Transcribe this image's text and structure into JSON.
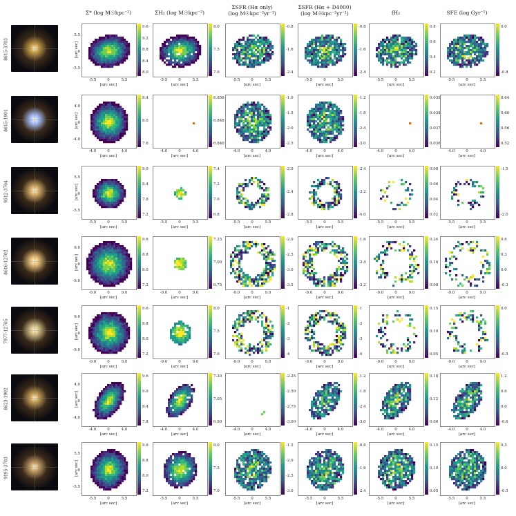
{
  "column_titles": [
    {
      "line1": "",
      "line2": "Σ* (log M☉kpc⁻²)"
    },
    {
      "line1": "",
      "line2": "ΣH₂ (log M☉kpc⁻²)"
    },
    {
      "line1": "ΣSFR (Hα only)",
      "line2": "(log M☉kpc⁻²yr⁻¹)"
    },
    {
      "line1": "ΣSFR (Hα + D4000)",
      "line2": "(log M☉kpc⁻²yr⁻¹)"
    },
    {
      "line1": "",
      "line2": "fH₂"
    },
    {
      "line1": "",
      "line2": "SFE (log Gyr⁻¹)"
    }
  ],
  "axis_label": "[arc sec]",
  "colors": {
    "viridis_low": "#440154",
    "viridis_mid": "#21918c",
    "viridis_high": "#fde725"
  },
  "rows": [
    {
      "id": "8615-3703",
      "xticks": [
        "-5.5",
        "0",
        "5.5"
      ],
      "yticks": [
        "5.5",
        "0",
        "-5.5"
      ],
      "cbars": [
        [
          "9.6",
          "9.2",
          "8.8",
          "8.4",
          "8.0"
        ],
        [
          "8.0",
          "7.5",
          "7.0"
        ],
        [
          "-0.8",
          "-1.6",
          "-2.4"
        ],
        [
          "-0.8",
          "-1.6",
          "-2.4"
        ],
        [
          "0.8",
          "0.6",
          "0.4",
          "0.2"
        ],
        [
          "0.0",
          "-0.8"
        ]
      ]
    },
    {
      "id": "8615-1901",
      "xticks": [
        "-4.0",
        "0",
        "4.0"
      ],
      "yticks": [
        "4.0",
        "0",
        "-4.0"
      ],
      "cbars": [
        [
          "8.4",
          "8.0",
          "7.6"
        ],
        [
          "6.856",
          "6.848",
          "6.840"
        ],
        [
          "-1.0",
          "-1.5",
          "-2.0",
          "-2.5"
        ],
        [
          "-1.2",
          "-1.8",
          "-2.4",
          "-3.0"
        ],
        [
          "0.039",
          "0.038",
          "0.037",
          "0.036"
        ],
        [
          "0.64",
          "0.60",
          "0.56",
          "0.52"
        ]
      ]
    },
    {
      "id": "9512-3704",
      "xticks": [
        "-5.5",
        "0",
        "5.5"
      ],
      "yticks": [
        "5.5",
        "0",
        "-5.5"
      ],
      "cbars": [
        [
          "9.0",
          "8.4",
          "7.8",
          "7.2"
        ],
        [
          "7.4",
          "7.2",
          "7.0",
          "6.8"
        ],
        [
          "-2.0",
          "-2.4",
          "-2.8"
        ],
        [
          "-2.4",
          "-3.2",
          "-4.0"
        ],
        [
          "0.08",
          "0.06",
          "0.04",
          "0.02"
        ],
        [
          "-1.5",
          "-2.0"
        ]
      ]
    },
    {
      "id": "8616-12702",
      "xticks": [
        "-9.0",
        "0",
        "9.0"
      ],
      "yticks": [
        "9.0",
        "0",
        "-9.0"
      ],
      "cbars": [
        [
          "9.6",
          "8.8",
          "8.0",
          "7.2"
        ],
        [
          "7.25",
          "7.00",
          "6.75"
        ],
        [
          "-2.0",
          "-2.5",
          "-3.0",
          "-3.5"
        ],
        [
          "-1.6",
          "-2.4",
          "-3.2"
        ],
        [
          "0.24",
          "0.16",
          "0.08"
        ],
        [
          "0.6",
          "0.3",
          "0.0",
          "-0.3"
        ]
      ]
    },
    {
      "id": "7977-12705",
      "xticks": [
        "-9.0",
        "0",
        "9.0"
      ],
      "yticks": [
        "9.0",
        "0",
        "-9.0"
      ],
      "cbars": [
        [
          "9.6",
          "8.8",
          "8.0",
          "7.2"
        ],
        [
          "8.0",
          "7.5",
          "7.0"
        ],
        [
          "-1",
          "-2",
          "-3",
          "-4"
        ],
        [
          "-1",
          "-2",
          "-3",
          "-4"
        ],
        [
          "0.15",
          "0.10",
          "0.05"
        ],
        [
          "0.0",
          "-0.5"
        ]
      ]
    },
    {
      "id": "8623-1902",
      "xticks": [
        "-4.0",
        "0",
        "4.0"
      ],
      "yticks": [
        "4.0",
        "0",
        "-4.0"
      ],
      "cbars": [
        [
          "9.6",
          "9.0",
          "8.4",
          "7.8"
        ],
        [
          "7.20",
          "7.05",
          "6.90"
        ],
        [
          "-2.25",
          "-2.50",
          "-2.75",
          "-3.00"
        ],
        [
          "-1.2",
          "-1.8",
          "-2.4",
          "-3.0"
        ],
        [
          "0.18",
          "0.12",
          "0.06"
        ],
        [
          "1.2",
          "0.6",
          "0.0",
          "-0.6"
        ]
      ]
    },
    {
      "id": "9195-3703",
      "xticks": [
        "-5.5",
        "0",
        "5.5"
      ],
      "yticks": [
        "5.5",
        "0",
        "-5.5"
      ],
      "cbars": [
        [
          "9.6",
          "8.8",
          "8.0",
          "7.2"
        ],
        [
          "8.0",
          "7.5",
          "7.0"
        ],
        [
          "-1.5",
          "-2.0",
          "-2.5",
          "-3.0"
        ],
        [
          "-0.8",
          "-1.6",
          "-2.4"
        ],
        [
          "0.15",
          "0.10",
          "0.05"
        ],
        [
          "0.5",
          "0.0",
          "-0.5"
        ]
      ]
    }
  ]
}
